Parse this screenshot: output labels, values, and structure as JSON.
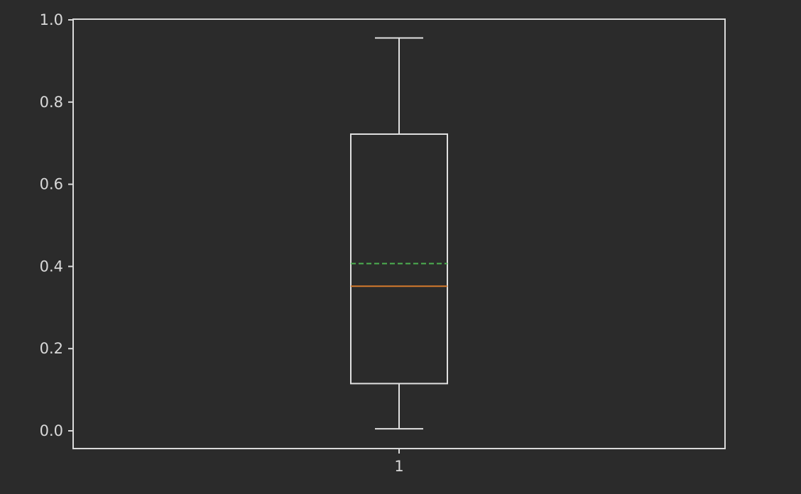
{
  "colors": {
    "background": "#2b2b2b",
    "axes": "#d9d9d9",
    "box": "#e0e0e0",
    "median": "#d47b2c",
    "mean": "#4caf50"
  },
  "chart_data": {
    "type": "box",
    "categories": [
      "1"
    ],
    "ylim": [
      0.0,
      1.0
    ],
    "y_ticks": [
      0.0,
      0.2,
      0.4,
      0.6,
      0.8,
      1.0
    ],
    "y_tick_labels": [
      "0.0",
      "0.2",
      "0.4",
      "0.6",
      "0.8",
      "1.0"
    ],
    "x_ticks": [
      "1"
    ],
    "boxes": [
      {
        "category": "1",
        "whisker_low": 0.005,
        "q1": 0.115,
        "median": 0.352,
        "mean": 0.407,
        "q3": 0.722,
        "whisker_high": 0.956
      }
    ],
    "mean_line_style": "dashed",
    "grid": false,
    "title": "",
    "xlabel": "",
    "ylabel": ""
  }
}
